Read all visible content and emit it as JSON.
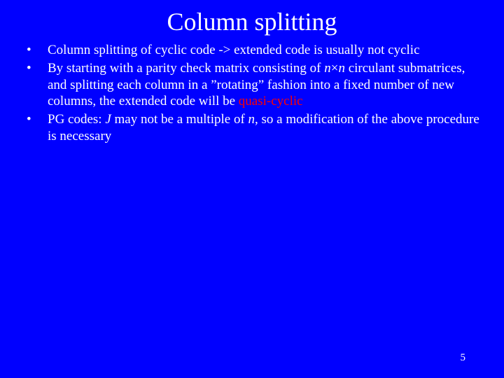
{
  "slide": {
    "title": "Column splitting",
    "background_color": "#0000ff",
    "text_color": "#ffffff",
    "highlight_color": "#ff0000",
    "title_fontsize": 36,
    "body_fontsize": 19,
    "font_family": "Times New Roman",
    "bullets": [
      {
        "pre": "Column splitting of cyclic code -> extended code is usually not cyclic",
        "italic1": "",
        "mid": "",
        "italic2": "",
        "post": "",
        "highlight": ""
      },
      {
        "pre": "By starting with a parity check matrix consisting of ",
        "italic1": "n",
        "mid": "×",
        "italic2": "n",
        "post": " circulant submatrices, and splitting each column in a ”rotating” fashion into a fixed number of new columns, the extended code will be ",
        "highlight": "quasi-cyclic"
      },
      {
        "pre": "PG codes: ",
        "italic1": "J",
        "mid": " may not be a multiple of ",
        "italic2": "n",
        "post": ", so a modification of the above procedure is necessary",
        "highlight": ""
      }
    ],
    "page_number": "5"
  }
}
